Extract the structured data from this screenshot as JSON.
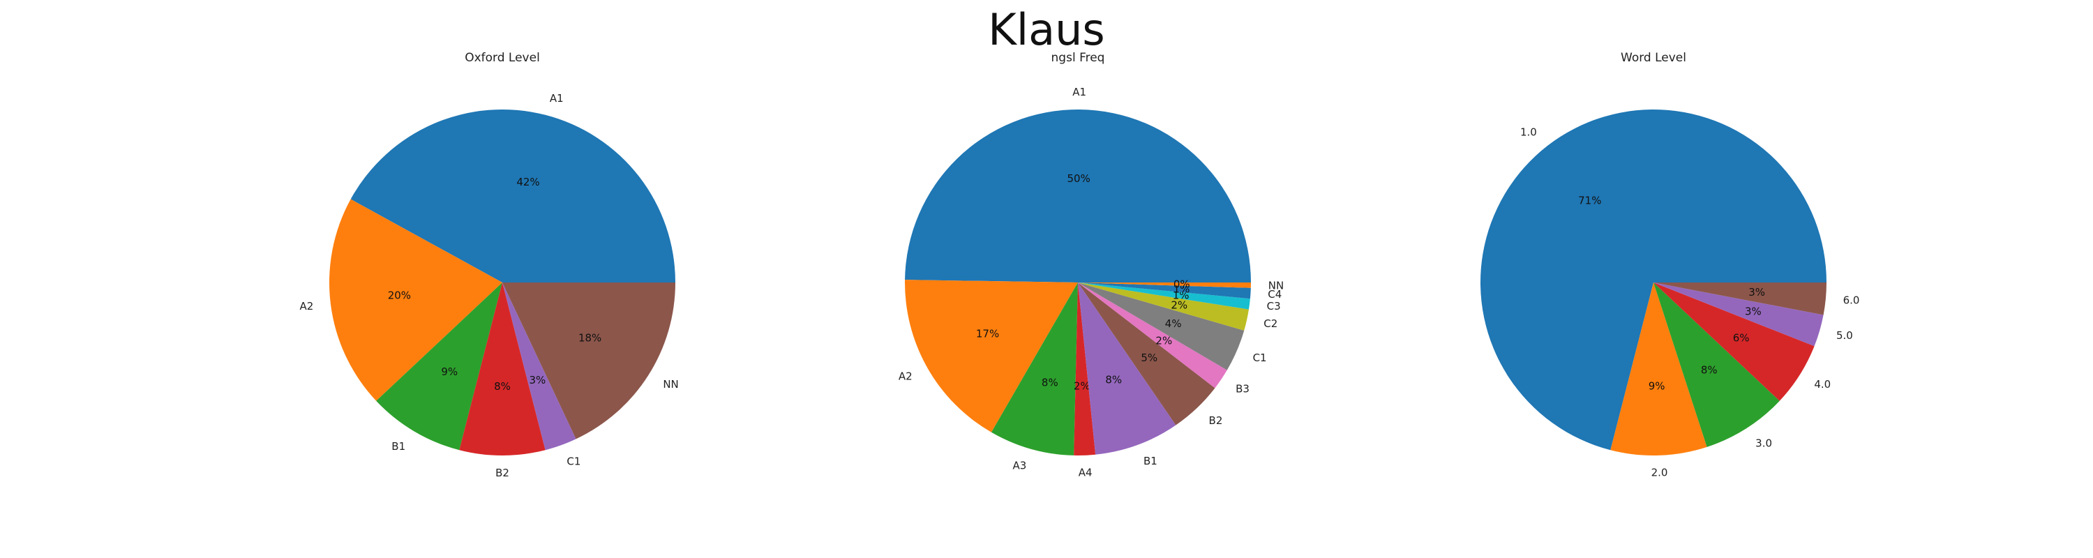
{
  "title": "Klaus",
  "chart_data": [
    {
      "type": "pie",
      "title": "Oxford Level",
      "categories": [
        "A1",
        "A2",
        "B1",
        "B2",
        "C1",
        "NN"
      ],
      "values": [
        42,
        20,
        9,
        8,
        3,
        18
      ],
      "pct_labels": [
        "42%",
        "20%",
        "9%",
        "8%",
        "3%",
        "18%"
      ],
      "colors": [
        "#1f77b4",
        "#ff7f0e",
        "#2ca02c",
        "#d62728",
        "#9467bd",
        "#8c564b"
      ]
    },
    {
      "type": "pie",
      "title": "ngsl Freq",
      "categories": [
        "A1",
        "A2",
        "A3",
        "A4",
        "B1",
        "B2",
        "B3",
        "C1",
        "C2",
        "C3",
        "C4",
        "NN"
      ],
      "values": [
        50,
        17,
        8,
        2,
        8,
        5,
        2,
        4,
        2,
        1,
        1,
        0.5
      ],
      "pct_labels": [
        "50%",
        "17%",
        "8%",
        "2%",
        "8%",
        "5%",
        "2%",
        "4%",
        "2%",
        "1%",
        "1%",
        "0%"
      ],
      "colors": [
        "#1f77b4",
        "#ff7f0e",
        "#2ca02c",
        "#d62728",
        "#9467bd",
        "#8c564b",
        "#e377c2",
        "#7f7f7f",
        "#bcbd22",
        "#17becf",
        "#1f77b4",
        "#ff7f0e"
      ]
    },
    {
      "type": "pie",
      "title": "Word Level",
      "categories": [
        "1.0",
        "2.0",
        "3.0",
        "4.0",
        "5.0",
        "6.0"
      ],
      "values": [
        71,
        9,
        8,
        6,
        3,
        3
      ],
      "pct_labels": [
        "71%",
        "9%",
        "8%",
        "6%",
        "3%",
        "3%"
      ],
      "colors": [
        "#1f77b4",
        "#ff7f0e",
        "#2ca02c",
        "#d62728",
        "#9467bd",
        "#8c564b"
      ]
    }
  ]
}
